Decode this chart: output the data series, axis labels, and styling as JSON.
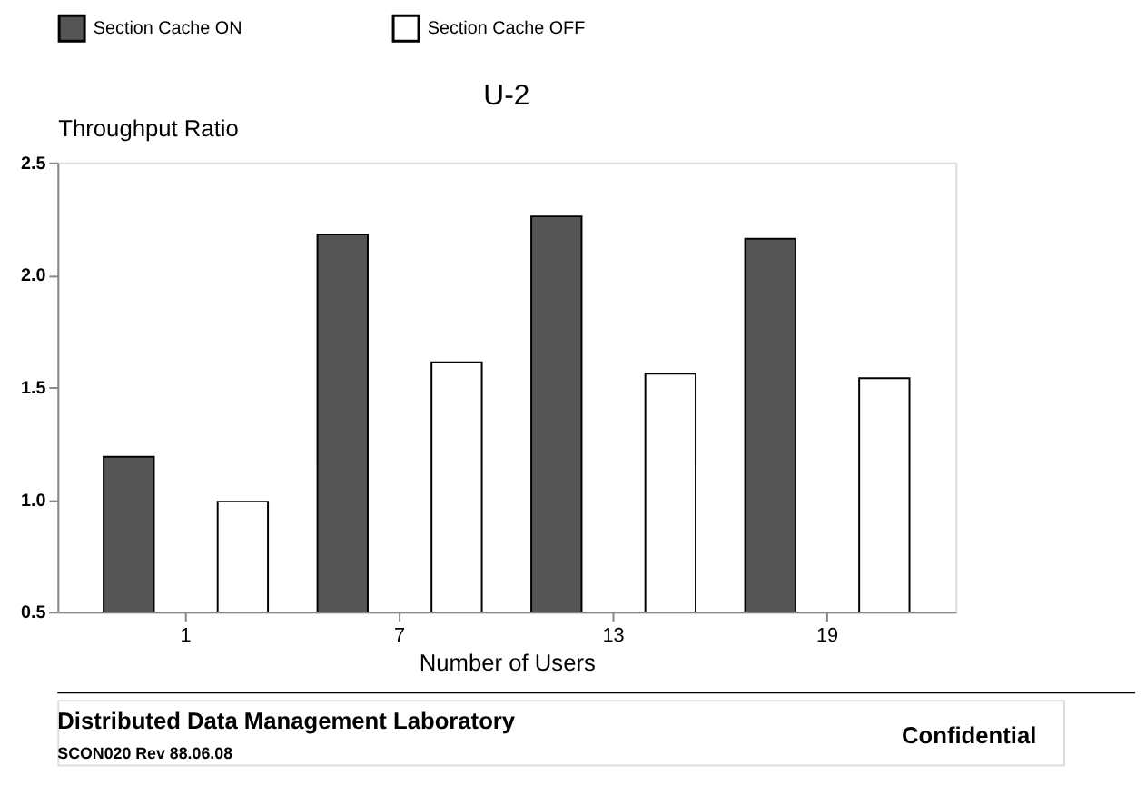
{
  "chart_data": {
    "type": "bar",
    "title": "U-2",
    "xlabel": "Number of Users",
    "ylabel": "Throughput Ratio",
    "categories": [
      "1",
      "7",
      "13",
      "19"
    ],
    "series": [
      {
        "name": "Section Cache ON",
        "color": "#555555",
        "values": [
          1.19,
          2.18,
          2.26,
          2.16
        ]
      },
      {
        "name": "Section Cache OFF",
        "color": "#ffffff",
        "values": [
          0.99,
          1.61,
          1.56,
          1.54
        ]
      }
    ],
    "ylim": [
      0.5,
      2.5
    ],
    "yticks": [
      0.5,
      {
        "value": 1.0,
        "label": "1.0"
      },
      1.5,
      {
        "value": 2.0,
        "label": "2.0"
      },
      2.5
    ],
    "grid": false,
    "legend": "top",
    "annotations": [
      "Distributed Data Management Laboratory",
      "SCON020 Rev 88.06.08",
      "Confidential"
    ]
  }
}
